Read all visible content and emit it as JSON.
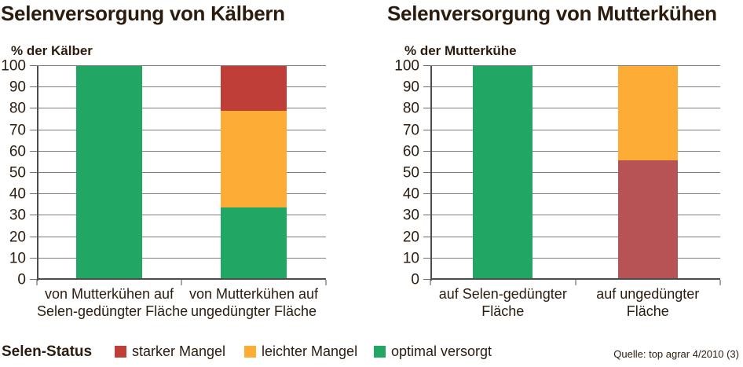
{
  "figure": {
    "legend": {
      "title": "Selen-Status",
      "items": [
        {
          "label": "starker Mangel",
          "color": "#bf3e37"
        },
        {
          "label": "leichter Mangel",
          "color": "#fdac35"
        },
        {
          "label": "optimal versorgt",
          "color": "#21a663"
        }
      ]
    },
    "source": "Quelle: top agrar 4/2010 (3)"
  },
  "chart_data": [
    {
      "type": "bar",
      "stacked": true,
      "title": "Selenversorgung von Kälbern",
      "ylabel": "% der Kälber",
      "xlabel": "",
      "ylim": [
        0,
        100
      ],
      "ytick_step": 10,
      "grid": true,
      "categories": [
        "von Mutterkühen auf\nSelen-gedüngter Fläche",
        "von Mutterkühen auf\nungedüngter Fläche"
      ],
      "series": [
        {
          "name": "optimal versorgt",
          "color": "#21a663",
          "values": [
            100,
            34
          ]
        },
        {
          "name": "leichter Mangel",
          "color": "#fdac35",
          "values": [
            0,
            45
          ]
        },
        {
          "name": "starker Mangel",
          "color": "#bf3e37",
          "values": [
            0,
            21
          ]
        }
      ]
    },
    {
      "type": "bar",
      "stacked": true,
      "title": "Selenversorgung von Mutterkühen",
      "ylabel": "% der Mutterkühe",
      "xlabel": "",
      "ylim": [
        0,
        100
      ],
      "ytick_step": 10,
      "grid": true,
      "categories": [
        "auf Selen-gedüngter\nFläche",
        "auf ungedüngter\nFläche"
      ],
      "series": [
        {
          "name": "optimal versorgt",
          "color": "#21a663",
          "values": [
            100,
            0
          ]
        },
        {
          "name": "starker Mangel",
          "color": "#b85355",
          "values": [
            0,
            56
          ]
        },
        {
          "name": "leichter Mangel",
          "color": "#fdac35",
          "values": [
            0,
            44
          ]
        }
      ]
    }
  ]
}
